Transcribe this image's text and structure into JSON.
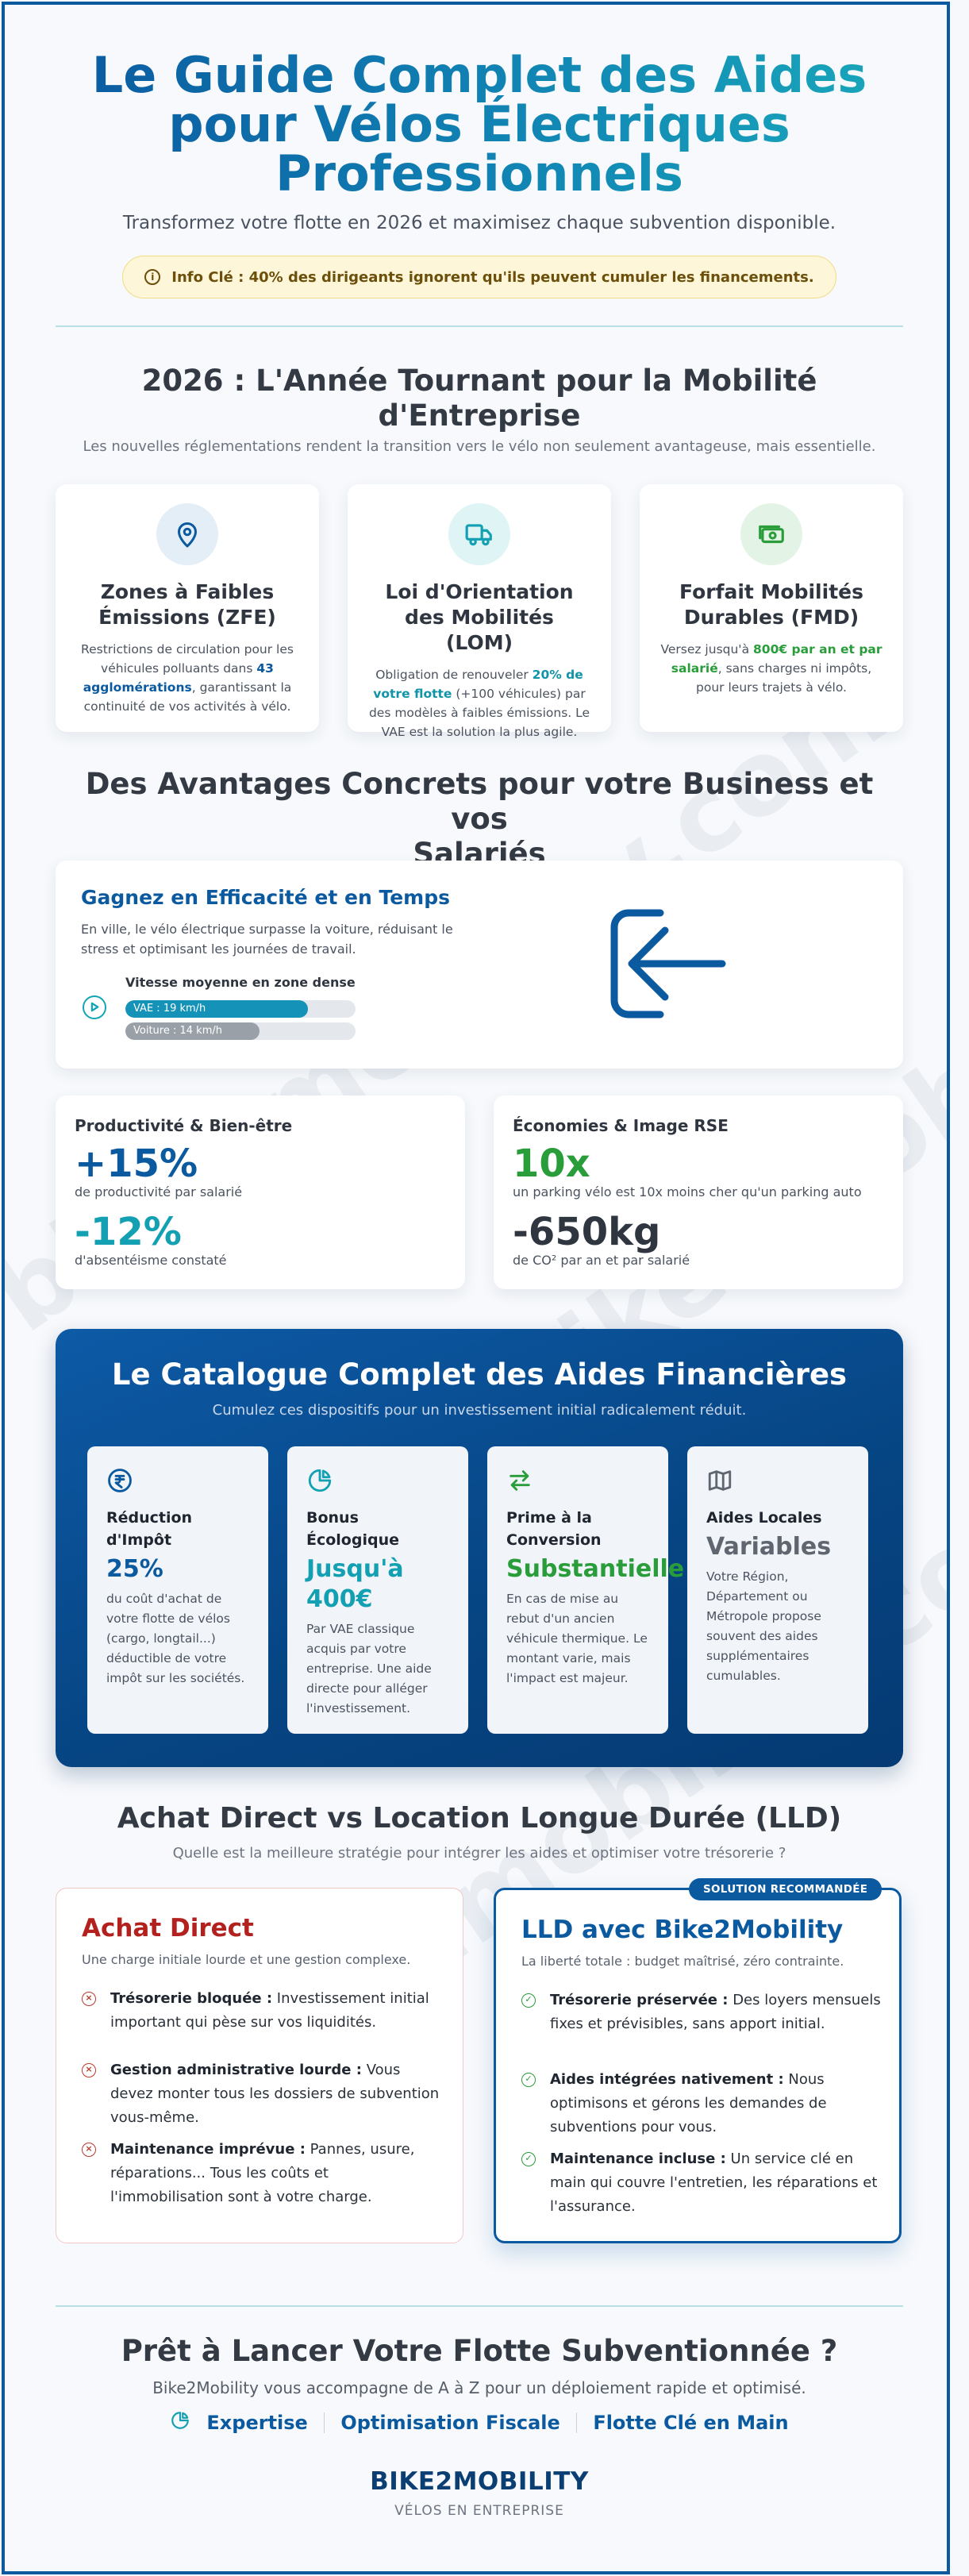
{
  "hero": {
    "title_line1": "Le Guide Complet des Aides",
    "title_line2": "pour Vélos Électriques",
    "title_line3": "Professionnels",
    "subtitle": "Transformez votre flotte en 2026 et maximisez chaque subvention disponible.",
    "info": "Info Clé : 40% des dirigeants ignorent qu'ils peuvent cumuler les financements."
  },
  "year_section": {
    "title_line1": "2026 : L'Année Tournant pour la Mobilité",
    "title_line2": "d'Entreprise",
    "subtitle": "Les nouvelles réglementations rendent la transition vers le vélo non seulement avantageuse, mais essentielle.",
    "cards": [
      {
        "icon": "map-pin-icon",
        "title_line1": "Zones à Faibles",
        "title_line2": "Émissions (ZFE)",
        "text_a": "Restrictions de circulation pour les véhicules polluants dans ",
        "text_hl": "43 agglomérations",
        "text_b": ", garantissant la continuité de vos activités à vélo."
      },
      {
        "icon": "truck-icon",
        "title_line1": "Loi d'Orientation",
        "title_line2": "des Mobilités (LOM)",
        "text_a": "Obligation de renouveler ",
        "text_hl": "20% de votre flotte",
        "text_b": " (+100 véhicules) par des modèles à faibles émissions. Le VAE est la solution la plus agile."
      },
      {
        "icon": "banknote-icon",
        "title_line1": "Forfait Mobilités",
        "title_line2": "Durables (FMD)",
        "text_a": "Versez jusqu'à ",
        "text_hl": "800€ par an et par salarié",
        "text_b": ", sans charges ni impôts, pour leurs trajets à vélo."
      }
    ]
  },
  "advantages": {
    "title_line1": "Des Avantages Concrets pour votre Business et vos",
    "title_line2": "Salariés",
    "efficiency": {
      "title": "Gagnez en Efficacité et en Temps",
      "text": "En ville, le vélo électrique surpasse la voiture, réduisant le stress et optimisant les journées de travail.",
      "speed_label": "Vitesse moyenne en zone dense",
      "bars": [
        {
          "label": "VAE : 19 km/h",
          "value": 19,
          "color": "#1592b7"
        },
        {
          "label": "Voiture : 14 km/h",
          "value": 14,
          "color": "#9aa0a8"
        }
      ],
      "scale_max": 24,
      "icon": "arrow-left-icon"
    },
    "productivity": {
      "title": "Productivité & Bien-être",
      "stat1": "+15%",
      "stat1_desc": "de productivité par salarié",
      "stat2": "-12%",
      "stat2_desc": "d'absentéisme constaté"
    },
    "savings": {
      "title": "Économies & Image RSE",
      "stat1": "10x",
      "stat1_desc": "un parking vélo est 10x moins cher qu'un parking auto",
      "stat2": "-650kg",
      "stat2_desc": "de CO² par an et par salarié"
    }
  },
  "catalog": {
    "title": "Le Catalogue Complet des Aides Financières",
    "subtitle": "Cumulez ces dispositifs pour un investissement initial radicalement réduit.",
    "cards": [
      {
        "icon": "rupee-coin-icon",
        "title_line1": "Réduction",
        "title_line2": "d'Impôt",
        "value_line1": "25%",
        "value_line2": "",
        "color": "#0b5aa0",
        "text": "du coût d'achat de votre flotte de vélos (cargo, longtail...) déductible de votre impôt sur les sociétés."
      },
      {
        "icon": "pie-chart-icon",
        "title_line1": "Bonus",
        "title_line2": "Écologique",
        "value_line1": "Jusqu'à",
        "value_line2": "400€",
        "color": "#13a0b2",
        "text": "Par VAE classique acquis par votre entreprise. Une aide directe pour alléger l'investissement."
      },
      {
        "icon": "swap-arrows-icon",
        "title_line1": "Prime à la",
        "title_line2": "Conversion",
        "value_line1": "Substantielle",
        "value_line2": "",
        "color": "#2a9d3b",
        "text": "En cas de mise au rebut d'un ancien véhicule thermique. Le montant varie, mais l'impact est majeur."
      },
      {
        "icon": "map-icon",
        "title_line1": "Aides Locales",
        "title_line2": "",
        "value_line1": "Variables",
        "value_line2": "",
        "color": "#5f6670",
        "text": "Votre Région, Département ou Métropole propose souvent des aides supplémentaires cumulables."
      }
    ]
  },
  "comparison": {
    "title": "Achat Direct vs Location Longue Durée (LLD)",
    "subtitle": "Quelle est la meilleure stratégie pour intégrer les aides et optimiser votre trésorerie ?",
    "badge": "SOLUTION RECOMMANDÉE",
    "direct": {
      "title": "Achat Direct",
      "subtitle": "Une charge initiale lourde et une gestion complexe.",
      "items": [
        {
          "bold": "Trésorerie bloquée :",
          "text": " Investissement initial important qui pèse sur vos liquidités."
        },
        {
          "bold": "Gestion administrative lourde :",
          "text": " Vous devez monter tous les dossiers de subvention vous-même."
        },
        {
          "bold": "Maintenance imprévue :",
          "text": " Pannes, usure, réparations... Tous les coûts et l'immobilisation sont à votre charge."
        }
      ]
    },
    "lld": {
      "title": "LLD avec Bike2Mobility",
      "subtitle": "La liberté totale : budget maîtrisé, zéro contrainte.",
      "items": [
        {
          "bold": "Trésorerie préservée :",
          "text": " Des loyers mensuels fixes et prévisibles, sans apport initial."
        },
        {
          "bold": "Aides intégrées nativement :",
          "text": " Nous optimisons et gérons les demandes de subventions pour vous."
        },
        {
          "bold": "Maintenance incluse :",
          "text": " Un service clé en main qui couvre l'entretien, les réparations et l'assurance."
        }
      ]
    }
  },
  "cta": {
    "title": "Prêt à Lancer Votre Flotte Subventionnée ?",
    "subtitle": "Bike2Mobility vous accompagne de A à Z pour un déploiement rapide et optimisé.",
    "features": [
      "Expertise",
      "Optimisation Fiscale",
      "Flotte Clé en Main"
    ],
    "brand": "BIKE2MOBILITY",
    "brand_sub": "VÉLOS EN ENTREPRISE"
  },
  "watermark": "bike2mobility.com"
}
